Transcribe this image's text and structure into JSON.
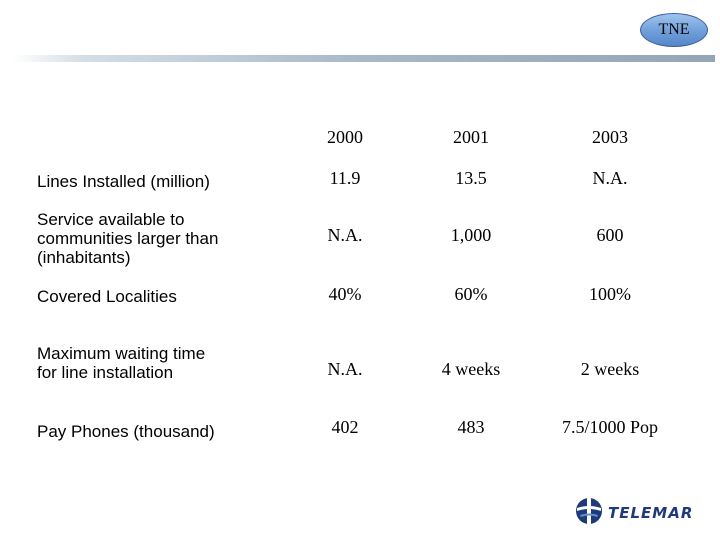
{
  "badge": {
    "label": "TNE"
  },
  "table": {
    "columns": [
      "2000",
      "2001",
      "2003"
    ],
    "rows": [
      {
        "label": [
          "Lines Installed (million)"
        ],
        "values": [
          "11.9",
          "13.5",
          "N.A."
        ]
      },
      {
        "label": [
          "Service available to",
          "communities larger than",
          "(inhabitants)"
        ],
        "values": [
          "N.A.",
          "1,000",
          "600"
        ]
      },
      {
        "label": [
          "Covered Localities"
        ],
        "values": [
          "40%",
          "60%",
          "100%"
        ]
      },
      {
        "label": [
          "Maximum waiting time",
          "for line installation"
        ],
        "values": [
          "N.A.",
          "4 weeks",
          "2 weeks"
        ]
      },
      {
        "label": [
          "Pay Phones (thousand)"
        ],
        "values": [
          "402",
          "483",
          "7.5/1000 Pop"
        ]
      }
    ]
  },
  "logo": {
    "text": "TELEMAR",
    "icon": "telemar-globe-icon",
    "color": "#1f3a78"
  }
}
